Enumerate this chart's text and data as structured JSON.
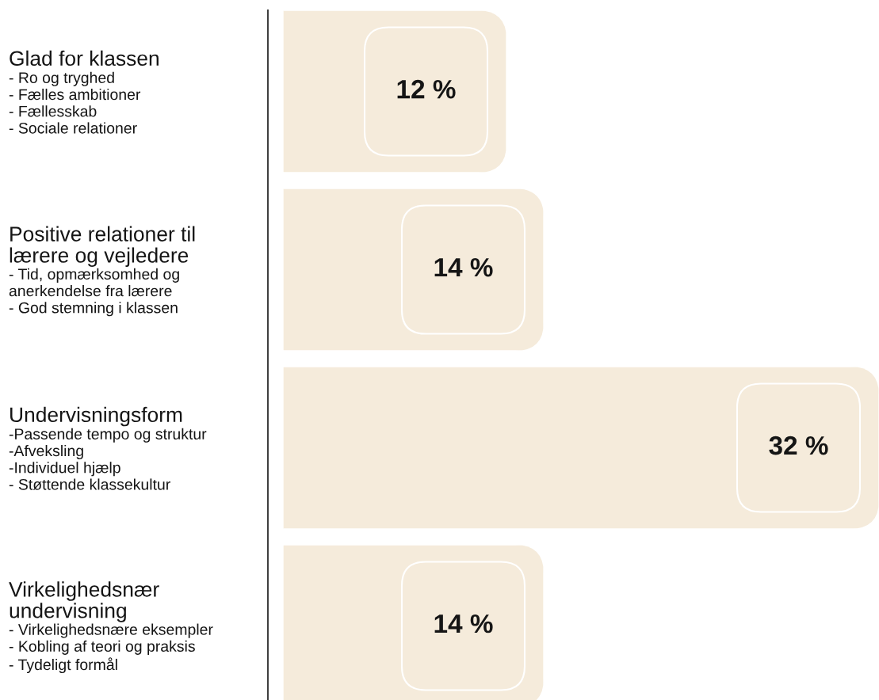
{
  "chart_data": {
    "type": "bar",
    "orientation": "horizontal",
    "categories": [
      "Glad for klassen",
      "Positive relationer til\nlærere og vejledere",
      "Undervisningsform",
      "Virkelighedsnær\nundervisning"
    ],
    "values": [
      12,
      14,
      32,
      14
    ],
    "color": "#f5ebdb",
    "value_labels": [
      "12 %",
      "14 %",
      "32 %",
      "14 %"
    ],
    "tick_labels": "y",
    "annotations": [
      "- Ro og tryghed\n- Fælles ambitioner\n- Fællesskab\n- Sociale relationer",
      "- Tid, opmærksomhed og\nanerkendelse fra lærere\n- God stemning i klassen",
      "-Passende tempo og struktur\n-Afveksling\n-Individuel hjælp\n- Støttende klassekultur",
      "- Virkelighedsnære eksempler\n- Kobling af teori og praksis\n- Tydeligt formål"
    ]
  }
}
